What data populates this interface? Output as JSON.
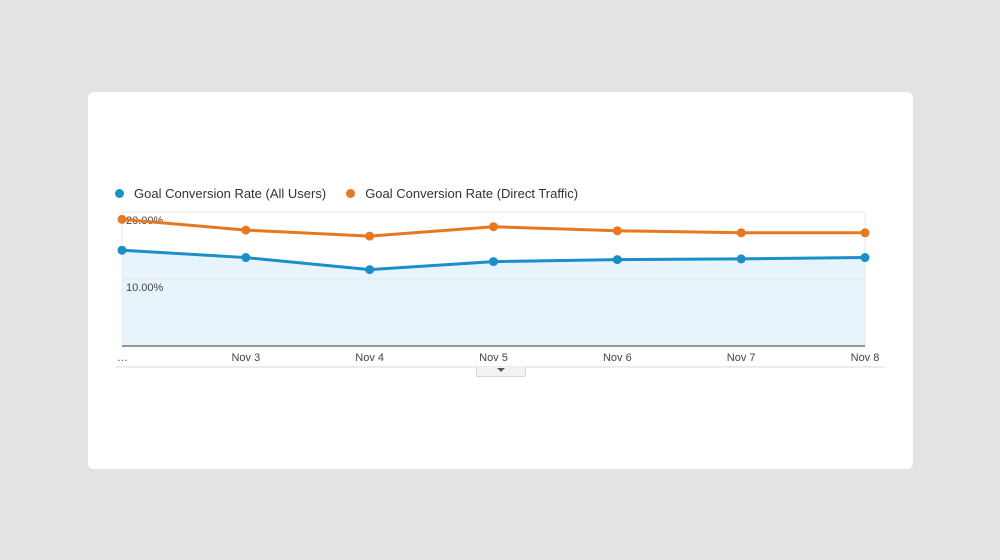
{
  "chart_data": {
    "type": "line",
    "categories": [
      "…",
      "Nov 3",
      "Nov 4",
      "Nov 5",
      "Nov 6",
      "Nov 7",
      "Nov 8"
    ],
    "series": [
      {
        "name": "Goal Conversion Rate (All Users)",
        "color": "#1a8fc9",
        "values": [
          14.3,
          13.2,
          11.4,
          12.6,
          12.9,
          13.0,
          13.2
        ],
        "fill": "#e8f4fb"
      },
      {
        "name": "Goal Conversion Rate (Direct Traffic)",
        "color": "#e8781f",
        "values": [
          18.9,
          17.3,
          16.4,
          17.8,
          17.2,
          16.9,
          16.9
        ]
      }
    ],
    "y_tick_labels": [
      "20.00%",
      "10.00%"
    ],
    "y_ticks": [
      20,
      10
    ],
    "ylim": [
      0,
      20
    ],
    "grid": true,
    "legend_position": "top-left"
  }
}
